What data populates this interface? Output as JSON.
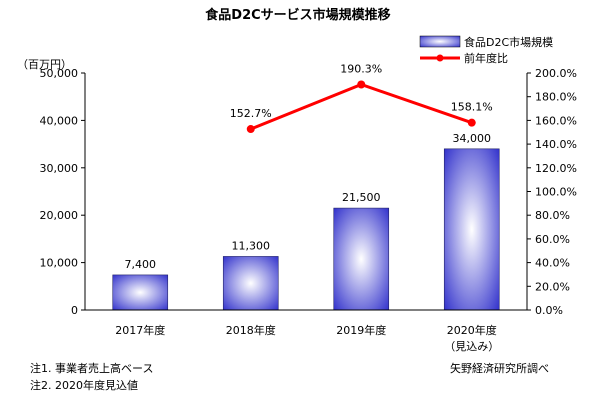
{
  "chart_data": {
    "type": "bar+line",
    "title": "食品D2Cサービス市場規模推移",
    "y_left_unit": "（百万円）",
    "categories": [
      "2017年度",
      "2018年度",
      "2019年度",
      "2020年度"
    ],
    "category_sublabels": [
      "",
      "",
      "",
      "（見込み）"
    ],
    "series": [
      {
        "name": "食品D2C市場規模",
        "kind": "bar",
        "axis": "left",
        "values": [
          7400,
          11300,
          21500,
          34000
        ],
        "labels": [
          "7,400",
          "11,300",
          "21,500",
          "34,000"
        ],
        "color": "#3333cc"
      },
      {
        "name": "前年度比",
        "kind": "line",
        "axis": "right",
        "values": [
          null,
          152.7,
          190.3,
          158.1
        ],
        "labels": [
          "",
          "152.7%",
          "190.3%",
          "158.1%"
        ],
        "color": "#ff0000"
      }
    ],
    "y_left": {
      "min": 0,
      "max": 50000,
      "ticks": [
        "0",
        "10,000",
        "20,000",
        "30,000",
        "40,000",
        "50,000"
      ]
    },
    "y_right": {
      "min": 0,
      "max": 200,
      "ticks": [
        "0.0%",
        "20.0%",
        "40.0%",
        "60.0%",
        "80.0%",
        "100.0%",
        "120.0%",
        "140.0%",
        "160.0%",
        "180.0%",
        "200.0%"
      ]
    },
    "grid": false,
    "legend_position": "top-right"
  },
  "notes": {
    "note1": "注1. 事業者売上高ベース",
    "note2": "注2. 2020年度見込値",
    "source": "矢野経済研究所調べ"
  }
}
